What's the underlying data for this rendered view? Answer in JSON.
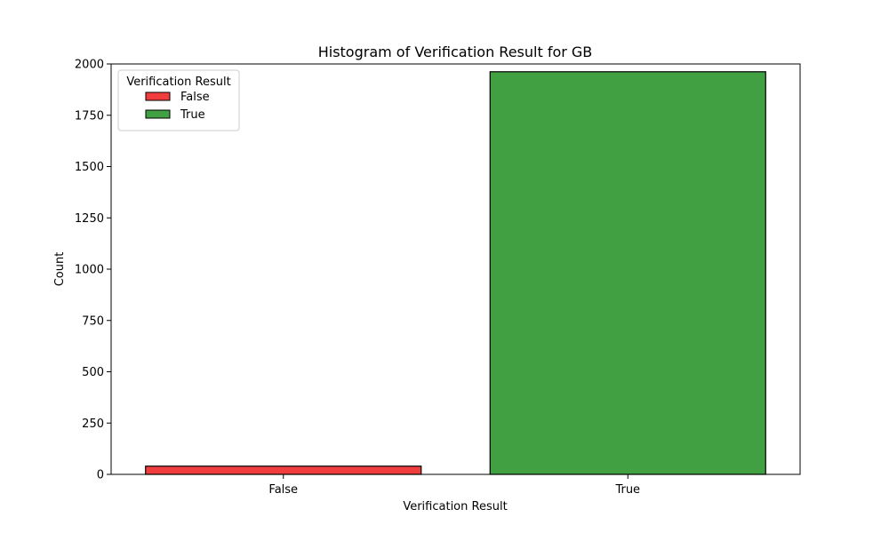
{
  "chart_data": {
    "type": "bar",
    "title": "Histogram of Verification Result for GB",
    "xlabel": "Verification Result",
    "ylabel": "Count",
    "categories": [
      "False",
      "True"
    ],
    "values": [
      40,
      1962
    ],
    "colors": [
      "#f03d3d",
      "#41a041"
    ],
    "edge_color": "#000000",
    "ylim": [
      0,
      2000
    ],
    "yticks": [
      0,
      250,
      500,
      750,
      1000,
      1250,
      1500,
      1750,
      2000
    ],
    "grid": false,
    "legend": {
      "title": "Verification Result",
      "placement": "top-left",
      "entries": [
        "False",
        "True"
      ]
    }
  }
}
